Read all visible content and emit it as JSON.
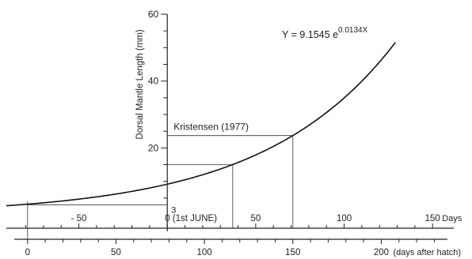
{
  "chart_data": {
    "type": "line",
    "equation": {
      "prefix": "Y = 9.1545 e",
      "exponent": "0.0134X"
    },
    "ylabel": "Dorsal  Mantle  Length  (mm)",
    "ylim": [
      0,
      60
    ],
    "yticks": [
      {
        "value": 20,
        "label": "20"
      },
      {
        "value": 40,
        "label": "40"
      },
      {
        "value": 60,
        "label": "60"
      }
    ],
    "xlim_days": [
      -91,
      162
    ],
    "x_axis_top": {
      "ticks": [
        {
          "value": -50,
          "label": "- 50"
        },
        {
          "value": 0,
          "label": "0  (1st JUNE)"
        },
        {
          "value": 50,
          "label": "50"
        },
        {
          "value": 100,
          "label": "100"
        },
        {
          "value": 150,
          "label": "150"
        }
      ],
      "unit_label": "Days"
    },
    "x_axis_bottom": {
      "offset_days": 79,
      "ticks": [
        {
          "value": 0,
          "label": "0"
        },
        {
          "value": 50,
          "label": "50"
        },
        {
          "value": 100,
          "label": "100"
        },
        {
          "value": 150,
          "label": "150"
        },
        {
          "value": 200,
          "label": "200"
        }
      ],
      "unit_label": "(days after hatch)"
    },
    "series": [
      {
        "model": {
          "a": 9.1545,
          "b": 0.0134
        },
        "x_range": [
          -91,
          129
        ]
      }
    ],
    "annotations": [
      {
        "label": "Kristensen  (1977)",
        "x1": 37,
        "x2": 71,
        "y1": 15.0,
        "y2": 23.7
      },
      {
        "label": "3",
        "x": -79,
        "y": 3
      }
    ]
  }
}
